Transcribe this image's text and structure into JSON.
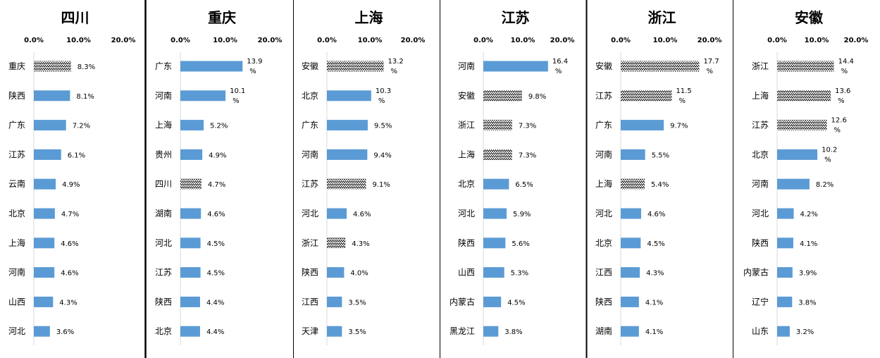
{
  "chart_data": [
    {
      "type": "bar",
      "title": "四川",
      "xlim": [
        0,
        20
      ],
      "xticks": [
        "0.0%",
        "10.0%",
        "20.0%"
      ],
      "categories": [
        "重庆",
        "陕西",
        "广东",
        "江苏",
        "云南",
        "北京",
        "上海",
        "河南",
        "山西",
        "河北"
      ],
      "values": [
        8.3,
        8.1,
        7.2,
        6.1,
        4.9,
        4.7,
        4.6,
        4.6,
        4.3,
        3.6
      ],
      "labels": [
        [
          "8.3%"
        ],
        [
          "8.1%"
        ],
        [
          "7.2%"
        ],
        [
          "6.1%"
        ],
        [
          "4.9%"
        ],
        [
          "4.7%"
        ],
        [
          "4.6%"
        ],
        [
          "4.6%"
        ],
        [
          "4.3%"
        ],
        [
          "3.6%"
        ]
      ],
      "patterned": [
        true,
        false,
        false,
        false,
        false,
        false,
        false,
        false,
        false,
        false
      ]
    },
    {
      "type": "bar",
      "title": "重庆",
      "xlim": [
        0,
        20
      ],
      "xticks": [
        "0.0%",
        "10.0%",
        "20.0%"
      ],
      "categories": [
        "广东",
        "河南",
        "上海",
        "贵州",
        "四川",
        "湖南",
        "河北",
        "江苏",
        "陕西",
        "北京"
      ],
      "values": [
        13.9,
        10.1,
        5.2,
        4.9,
        4.7,
        4.6,
        4.5,
        4.5,
        4.4,
        4.4
      ],
      "labels": [
        [
          "13.9",
          "%"
        ],
        [
          "10.1",
          "%"
        ],
        [
          "5.2%"
        ],
        [
          "4.9%"
        ],
        [
          "4.7%"
        ],
        [
          "4.6%"
        ],
        [
          "4.5%"
        ],
        [
          "4.5%"
        ],
        [
          "4.4%"
        ],
        [
          "4.4%"
        ]
      ],
      "patterned": [
        false,
        false,
        false,
        false,
        true,
        false,
        false,
        false,
        false,
        false
      ]
    },
    {
      "type": "bar",
      "title": "上海",
      "xlim": [
        0,
        20
      ],
      "xticks": [
        "0.0%",
        "10.0%",
        "20.0%"
      ],
      "categories": [
        "安徽",
        "北京",
        "广东",
        "河南",
        "江苏",
        "河北",
        "浙江",
        "陕西",
        "江西",
        "天津"
      ],
      "values": [
        13.2,
        10.3,
        9.5,
        9.4,
        9.1,
        4.6,
        4.3,
        4.0,
        3.5,
        3.5
      ],
      "labels": [
        [
          "13.2",
          "%"
        ],
        [
          "10.3",
          "%"
        ],
        [
          "9.5%"
        ],
        [
          "9.4%"
        ],
        [
          "9.1%"
        ],
        [
          "4.6%"
        ],
        [
          "4.3%"
        ],
        [
          "4.0%"
        ],
        [
          "3.5%"
        ],
        [
          "3.5%"
        ]
      ],
      "patterned": [
        true,
        false,
        false,
        false,
        true,
        false,
        true,
        false,
        false,
        false
      ]
    },
    {
      "type": "bar",
      "title": "江苏",
      "xlim": [
        0,
        20
      ],
      "xticks": [
        "0.0%",
        "10.0%",
        "20.0%"
      ],
      "categories": [
        "河南",
        "安徽",
        "浙江",
        "上海",
        "北京",
        "河北",
        "陕西",
        "山西",
        "内蒙古",
        "黑龙江"
      ],
      "values": [
        16.4,
        9.8,
        7.3,
        7.3,
        6.5,
        5.9,
        5.6,
        5.3,
        4.5,
        3.8
      ],
      "labels": [
        [
          "16.4",
          "%"
        ],
        [
          "9.8%"
        ],
        [
          "7.3%"
        ],
        [
          "7.3%"
        ],
        [
          "6.5%"
        ],
        [
          "5.9%"
        ],
        [
          "5.6%"
        ],
        [
          "5.3%"
        ],
        [
          "4.5%"
        ],
        [
          "3.8%"
        ]
      ],
      "patterned": [
        false,
        true,
        true,
        true,
        false,
        false,
        false,
        false,
        false,
        false
      ]
    },
    {
      "type": "bar",
      "title": "浙江",
      "xlim": [
        0,
        20
      ],
      "xticks": [
        "0.0%",
        "10.0%",
        "20.0%"
      ],
      "categories": [
        "安徽",
        "江苏",
        "广东",
        "河南",
        "上海",
        "河北",
        "北京",
        "江西",
        "陕西",
        "湖南"
      ],
      "values": [
        17.7,
        11.5,
        9.7,
        5.5,
        5.4,
        4.6,
        4.5,
        4.3,
        4.1,
        4.1
      ],
      "labels": [
        [
          "17.7",
          "%"
        ],
        [
          "11.5",
          "%"
        ],
        [
          "9.7%"
        ],
        [
          "5.5%"
        ],
        [
          "5.4%"
        ],
        [
          "4.6%"
        ],
        [
          "4.5%"
        ],
        [
          "4.3%"
        ],
        [
          "4.1%"
        ],
        [
          "4.1%"
        ]
      ],
      "patterned": [
        true,
        true,
        false,
        false,
        true,
        false,
        false,
        false,
        false,
        false
      ]
    },
    {
      "type": "bar",
      "title": "安徽",
      "xlim": [
        0,
        20
      ],
      "xticks": [
        "0.0%",
        "10.0%",
        "20.0%"
      ],
      "categories": [
        "浙江",
        "上海",
        "江苏",
        "北京",
        "河南",
        "河北",
        "陕西",
        "内蒙古",
        "辽宁",
        "山东"
      ],
      "values": [
        14.4,
        13.6,
        12.6,
        10.2,
        8.2,
        4.2,
        4.1,
        3.9,
        3.8,
        3.2
      ],
      "labels": [
        [
          "14.4",
          "%"
        ],
        [
          "13.6",
          "%"
        ],
        [
          "12.6",
          "%"
        ],
        [
          "10.2",
          "%"
        ],
        [
          "8.2%"
        ],
        [
          "4.2%"
        ],
        [
          "4.1%"
        ],
        [
          "3.9%"
        ],
        [
          "3.8%"
        ],
        [
          "3.2%"
        ]
      ],
      "patterned": [
        true,
        true,
        true,
        false,
        false,
        false,
        false,
        false,
        false,
        false
      ]
    }
  ],
  "colors": {
    "bar": "#5b9bd5",
    "pattern_line": "#000000",
    "axis": "#d9d9d9",
    "divider": "#000000"
  }
}
